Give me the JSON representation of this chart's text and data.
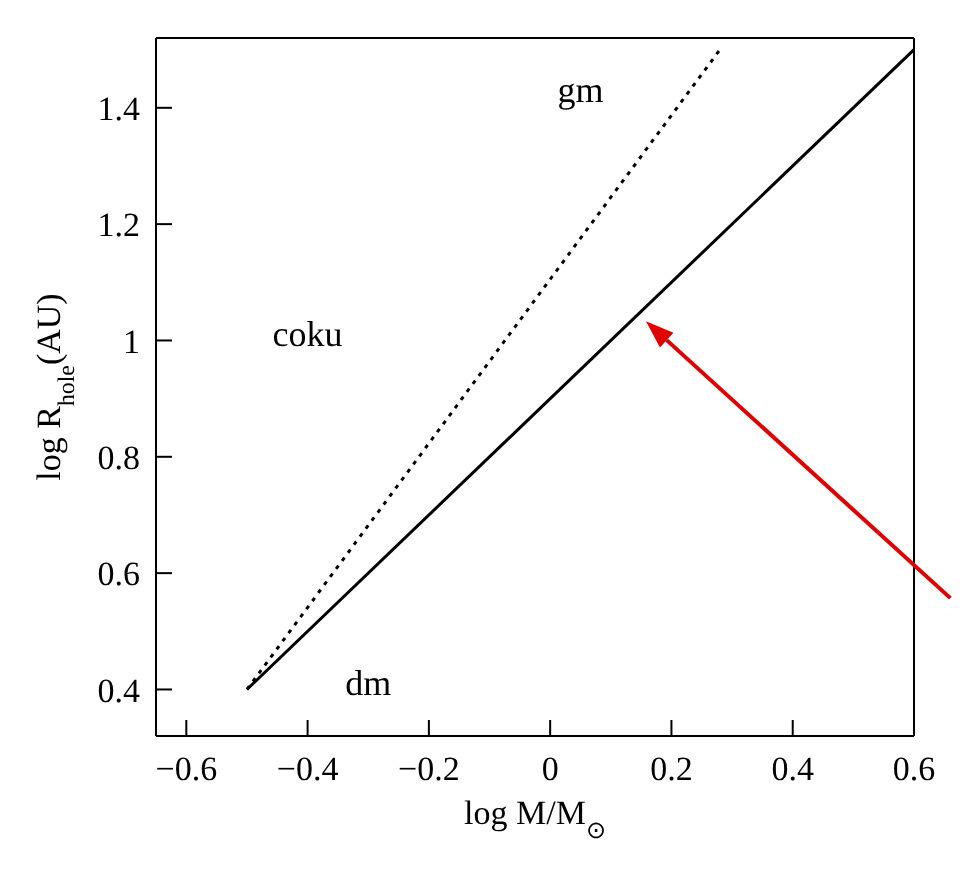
{
  "chart_data": {
    "type": "line",
    "xlabel": "log M/M$_{⊙}$",
    "ylabel": "log R$_{hole}$(AU)",
    "xlim": [
      -0.65,
      0.6
    ],
    "ylim": [
      0.32,
      1.52
    ],
    "xticks": [
      -0.6,
      -0.4,
      -0.2,
      0,
      0.2,
      0.4,
      0.6
    ],
    "yticks": [
      0.4,
      0.6,
      0.8,
      1,
      1.2,
      1.4
    ],
    "series": [
      {
        "color": "#000000",
        "x": [
          -0.5,
          0.6
        ],
        "values": [
          0.4,
          1.5
        ],
        "line_style": "solid"
      },
      {
        "color": "#000000",
        "x": [
          -0.5,
          0.28
        ],
        "values": [
          0.4,
          1.5
        ],
        "line_style": "dotted"
      }
    ],
    "annotations": [
      "gm",
      "coku",
      "dm"
    ],
    "marker": "none"
  }
}
